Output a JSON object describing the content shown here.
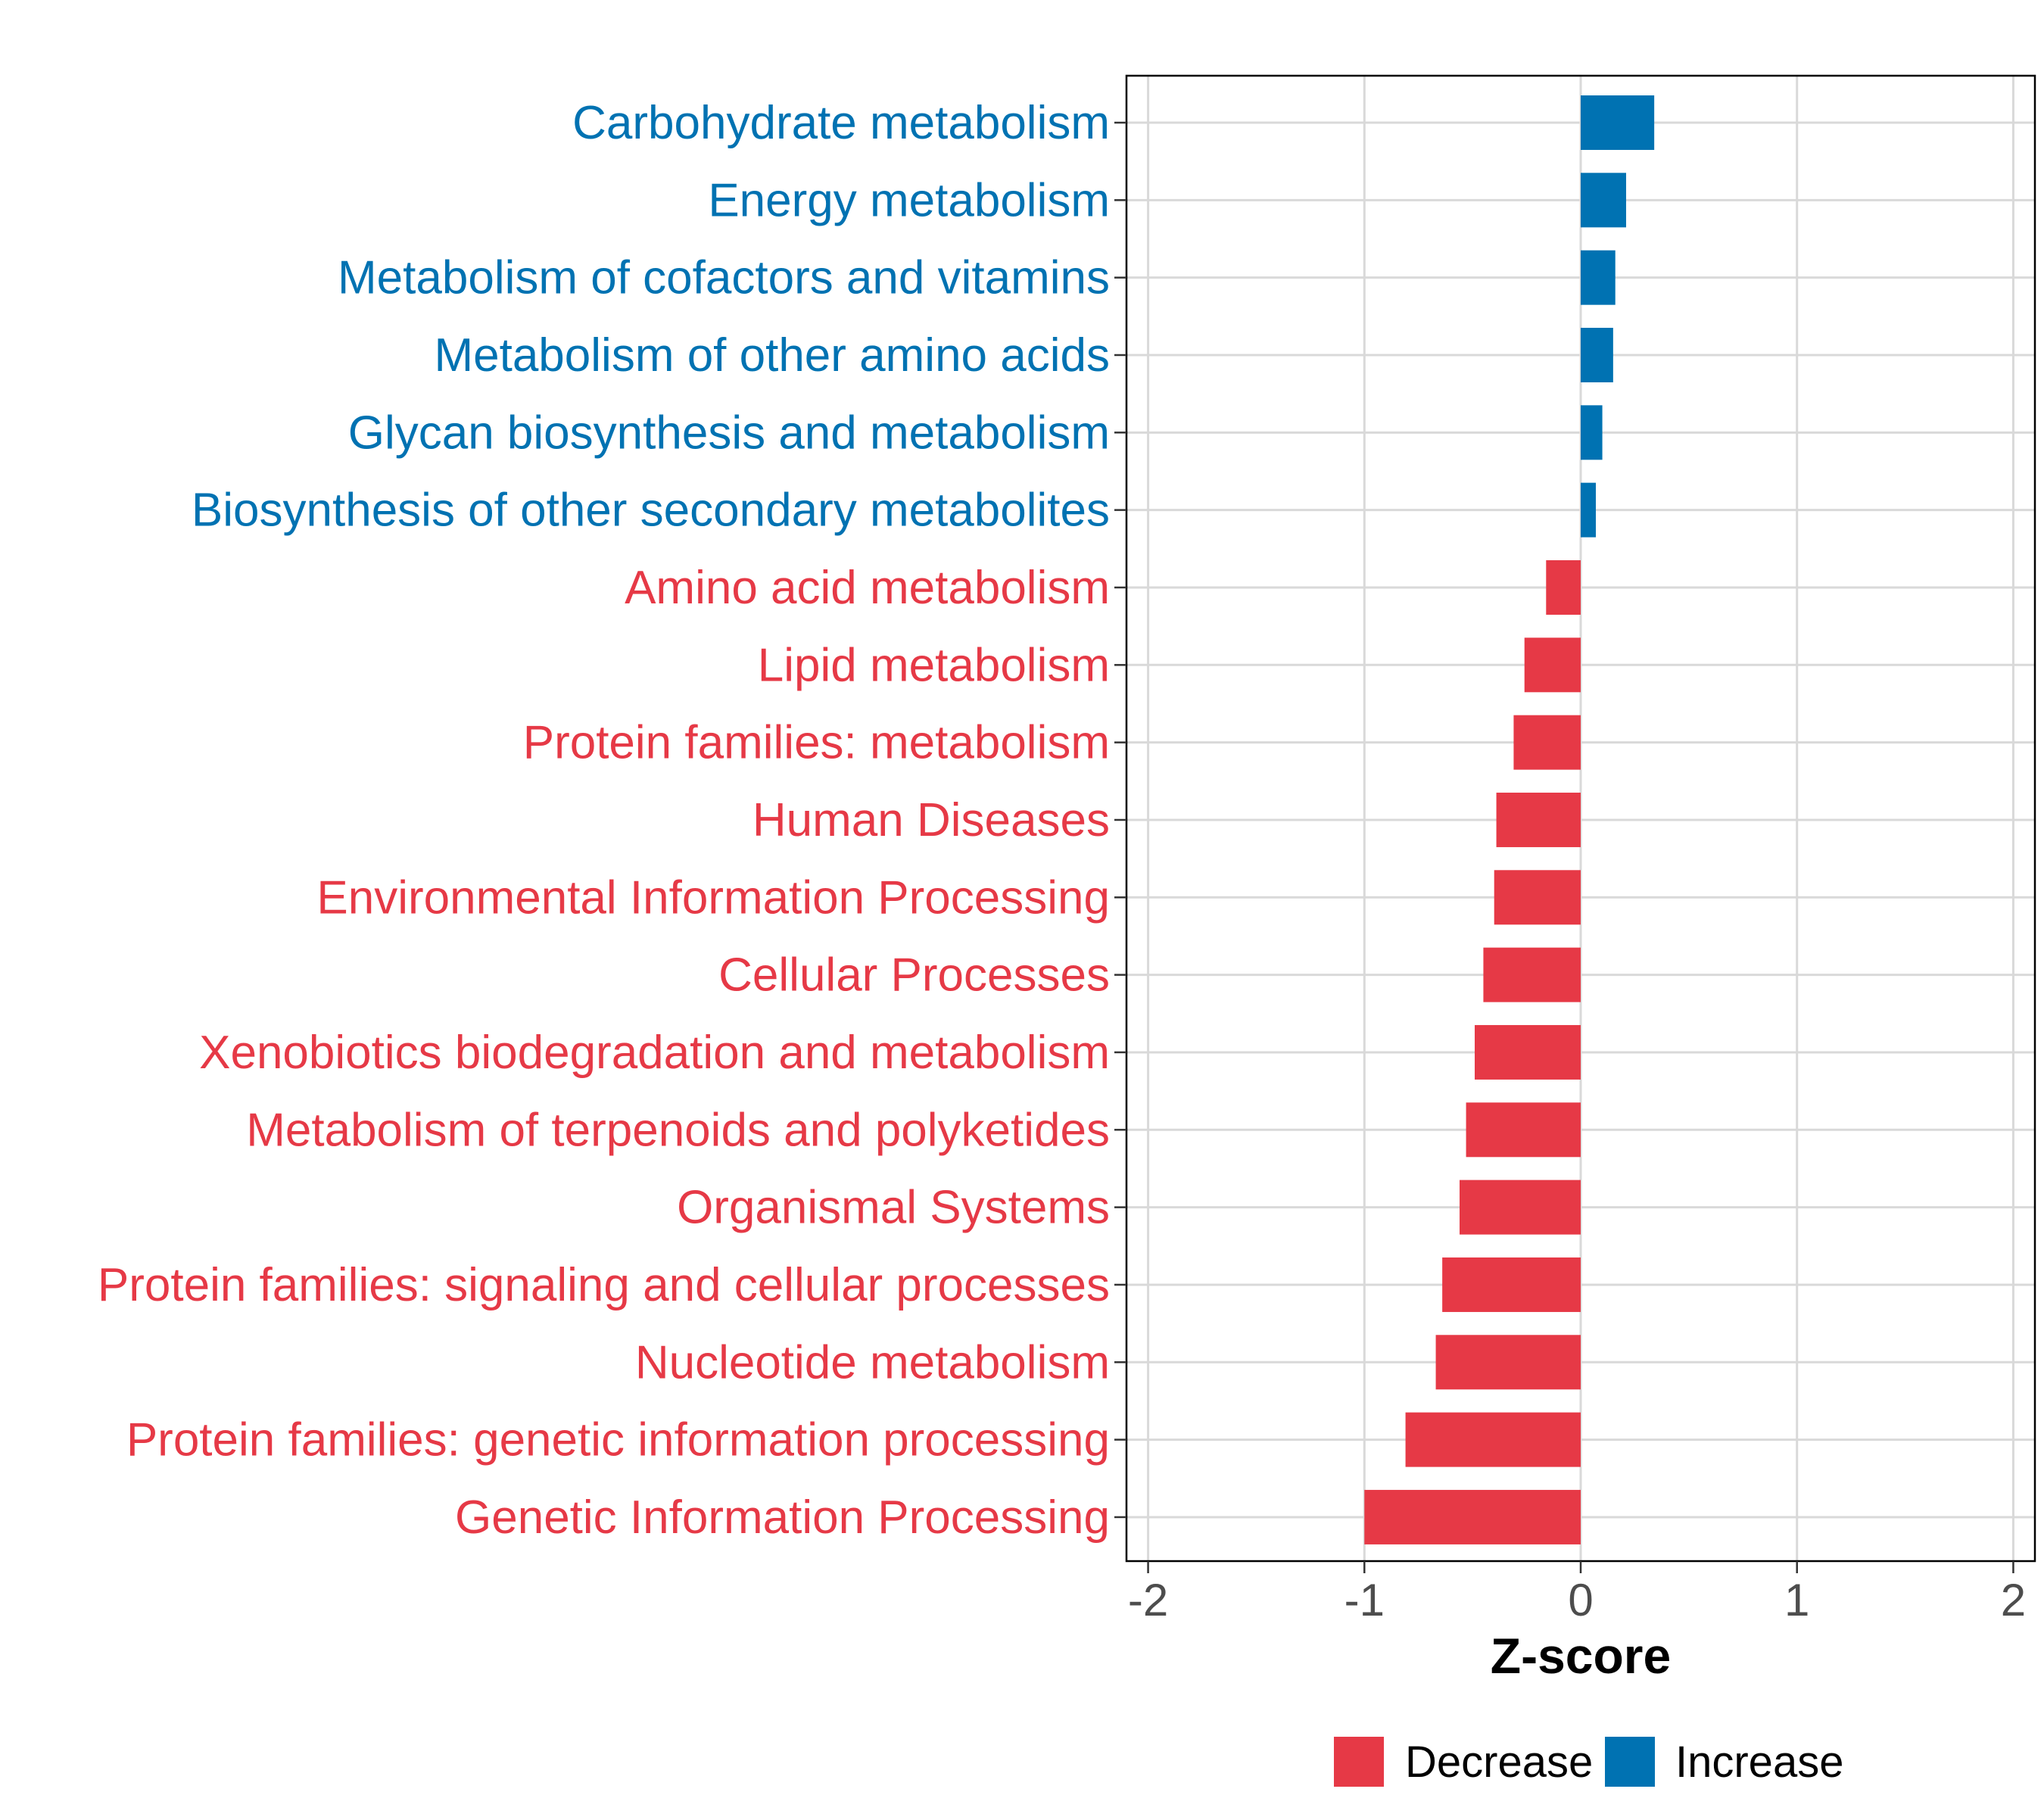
{
  "chart_data": {
    "type": "bar",
    "orientation": "horizontal",
    "title": "",
    "xlabel": "Z-score",
    "ylabel": "",
    "xlim": [
      -2.1,
      2.1
    ],
    "x_ticks": [
      "-2",
      "-1",
      "0",
      "1",
      "2"
    ],
    "grid": true,
    "legend_position": "bottom",
    "colors": {
      "Decrease": "#e63946",
      "Increase": "#0072b2"
    },
    "legend": [
      {
        "label": "Decrease",
        "color": "#e63946"
      },
      {
        "label": "Increase",
        "color": "#0072b2"
      }
    ],
    "categories": [
      "Carbohydrate metabolism",
      "Energy metabolism",
      "Metabolism of cofactors and vitamins",
      "Metabolism of other amino acids",
      "Glycan biosynthesis and metabolism",
      "Biosynthesis of other secondary metabolites",
      "Amino acid metabolism",
      "Lipid metabolism",
      "Protein families: metabolism",
      "Human Diseases",
      "Environmental Information Processing",
      "Cellular Processes",
      "Xenobiotics biodegradation and metabolism",
      "Metabolism of terpenoids and polyketides",
      "Organismal Systems",
      "Protein families: signaling and cellular processes",
      "Nucleotide metabolism",
      "Protein families: genetic information processing",
      "Genetic Information Processing"
    ],
    "values": [
      0.34,
      0.21,
      0.16,
      0.15,
      0.1,
      0.07,
      -0.16,
      -0.26,
      -0.31,
      -0.39,
      -0.4,
      -0.45,
      -0.49,
      -0.53,
      -0.56,
      -0.64,
      -0.67,
      -0.81,
      -1.0
    ],
    "groups": [
      "Increase",
      "Increase",
      "Increase",
      "Increase",
      "Increase",
      "Increase",
      "Decrease",
      "Decrease",
      "Decrease",
      "Decrease",
      "Decrease",
      "Decrease",
      "Decrease",
      "Decrease",
      "Decrease",
      "Decrease",
      "Decrease",
      "Decrease",
      "Decrease"
    ]
  }
}
